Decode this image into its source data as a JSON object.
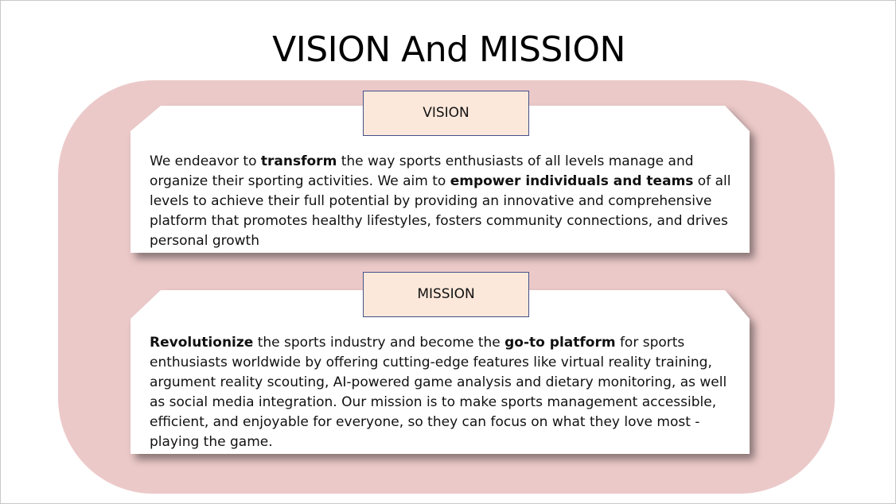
{
  "slide": {
    "title": "VISION And MISSION"
  },
  "vision": {
    "label": "VISION",
    "text": [
      {
        "t": "We endeavor to ",
        "b": false
      },
      {
        "t": "transform",
        "b": true
      },
      {
        "t": " the way sports enthusiasts of all levels manage and\norganize their sporting activities. We aim to ",
        "b": false
      },
      {
        "t": "empower individuals and teams",
        "b": true
      },
      {
        "t": " of all\nlevels to achieve their full potential by providing an innovative and comprehensive\nplatform that promotes healthy lifestyles, fosters community connections, and drives\npersonal growth",
        "b": false
      }
    ]
  },
  "mission": {
    "label": "MISSION",
    "text": [
      {
        "t": "Revolutionize",
        "b": true
      },
      {
        "t": " the sports industry and become the ",
        "b": false
      },
      {
        "t": "go-to platform",
        "b": true
      },
      {
        "t": " for sports\nenthusiasts worldwide by offering cutting-edge features like virtual reality training,\nargument reality scouting, AI-powered game analysis and dietary monitoring, as well\nas social media integration. Our mission is to make sports management accessible,\nefficient, and enjoyable for everyone, so they can focus on what they love most -\nplaying the game.",
        "b": false
      }
    ]
  },
  "colors": {
    "background_band": "#ecc9c9",
    "label_fill": "#fce8da",
    "label_border": "#44508a",
    "card_fill": "#ffffff"
  }
}
